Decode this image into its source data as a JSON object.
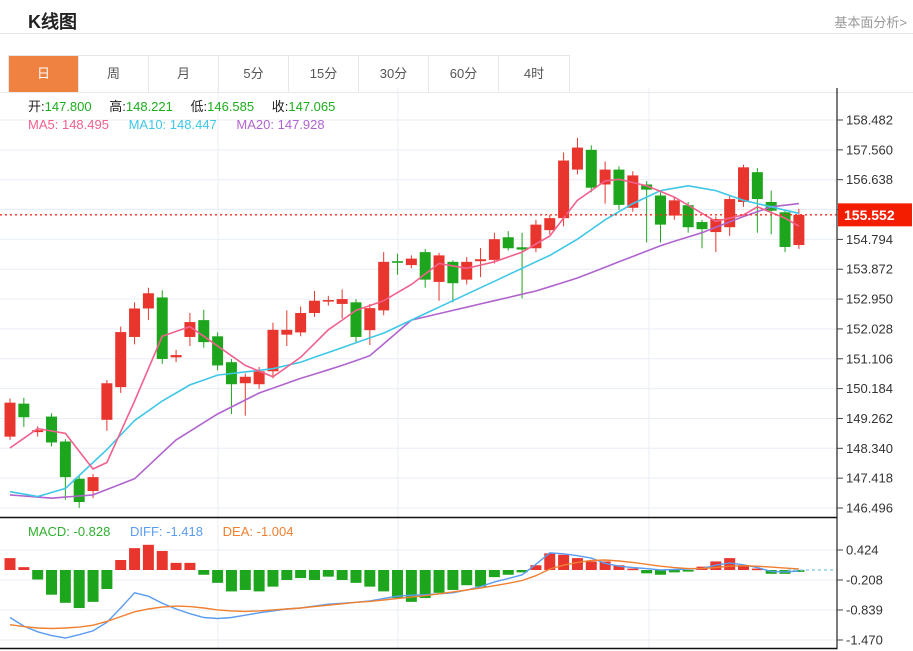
{
  "header": {
    "title": "K线图",
    "link": "基本面分析>"
  },
  "tabs": [
    {
      "label": "日",
      "active": true
    },
    {
      "label": "周",
      "active": false
    },
    {
      "label": "月",
      "active": false
    },
    {
      "label": "5分",
      "active": false
    },
    {
      "label": "15分",
      "active": false
    },
    {
      "label": "30分",
      "active": false
    },
    {
      "label": "60分",
      "active": false
    },
    {
      "label": "4时",
      "active": false
    }
  ],
  "info": {
    "open_label": "开:",
    "open": "147.800",
    "high_label": "高:",
    "high": "148.221",
    "low_label": "低:",
    "low": "146.585",
    "close_label": "收:",
    "close": "147.065",
    "ma5_label": "MA5:",
    "ma5": "148.495",
    "ma10_label": "MA10:",
    "ma10": "148.447",
    "ma20_label": "MA20:",
    "ma20": "147.928"
  },
  "macd_info": {
    "macd_label": "MACD:",
    "macd": "-0.828",
    "diff_label": "DIFF:",
    "diff": "-1.418",
    "dea_label": "DEA:",
    "dea": "-1.004"
  },
  "colors": {
    "up": "#e8362e",
    "down": "#1ea51e",
    "ma5": "#f2618e",
    "ma10": "#3fc7e8",
    "ma20": "#b164cd",
    "diff": "#5b9cf0",
    "dea": "#f08030",
    "grid": "#e9eef6",
    "axis": "#333333",
    "current_line": "#ff2a1a",
    "badge_bg": "#f51d00",
    "badge_text": "#ffffff",
    "green_text": "#1cae1c",
    "tab_accent": "#ef8241",
    "zero_dash": "#8fd0ec"
  },
  "chart_data": {
    "type": "candlestick",
    "title": "K线图",
    "legend": [
      "MA5",
      "MA10",
      "MA20",
      "MACD",
      "DIFF",
      "DEA"
    ],
    "current_price": "155.552",
    "price_ticks": [
      "158.482",
      "157.560",
      "156.638",
      "155.716",
      "154.794",
      "153.872",
      "152.950",
      "152.028",
      "151.106",
      "150.184",
      "149.262",
      "148.340",
      "147.418",
      "146.496"
    ],
    "tick_step": 0.922,
    "vgrid_x": [
      218,
      398,
      649
    ],
    "candles": [
      [
        148.7,
        149.75,
        148.6,
        149.88
      ],
      [
        149.72,
        149.3,
        149.0,
        149.9
      ],
      [
        148.84,
        148.9,
        148.7,
        149.02
      ],
      [
        149.32,
        148.52,
        148.4,
        149.42
      ],
      [
        148.55,
        147.45,
        146.75,
        148.62
      ],
      [
        147.4,
        146.68,
        146.5,
        147.48
      ],
      [
        147.02,
        147.45,
        146.8,
        147.55
      ],
      [
        149.22,
        150.35,
        148.88,
        150.45
      ],
      [
        150.23,
        151.93,
        150.05,
        152.1
      ],
      [
        151.78,
        152.66,
        151.55,
        152.85
      ],
      [
        152.66,
        153.13,
        152.3,
        153.3
      ],
      [
        153.0,
        151.1,
        150.95,
        153.22
      ],
      [
        151.15,
        151.22,
        151.0,
        151.38
      ],
      [
        151.78,
        152.24,
        151.5,
        152.52
      ],
      [
        152.3,
        151.62,
        151.45,
        152.62
      ],
      [
        151.8,
        150.9,
        150.75,
        151.92
      ],
      [
        151.0,
        150.32,
        149.4,
        151.1
      ],
      [
        150.35,
        150.55,
        149.35,
        150.65
      ],
      [
        150.32,
        150.72,
        150.18,
        150.85
      ],
      [
        150.72,
        152.0,
        150.5,
        152.22
      ],
      [
        151.85,
        152.0,
        151.5,
        152.6
      ],
      [
        151.92,
        152.52,
        151.8,
        152.72
      ],
      [
        152.52,
        152.9,
        152.4,
        153.2
      ],
      [
        152.88,
        152.92,
        152.75,
        153.05
      ],
      [
        152.8,
        152.95,
        152.35,
        153.25
      ],
      [
        152.85,
        151.78,
        151.6,
        152.95
      ],
      [
        151.99,
        152.67,
        151.53,
        152.8
      ],
      [
        152.6,
        154.1,
        152.45,
        154.4
      ],
      [
        154.12,
        154.08,
        153.7,
        154.35
      ],
      [
        154.0,
        154.2,
        153.9,
        154.3
      ],
      [
        154.4,
        153.55,
        153.3,
        154.5
      ],
      [
        153.48,
        154.3,
        152.9,
        154.38
      ],
      [
        154.1,
        153.44,
        152.85,
        154.15
      ],
      [
        153.55,
        154.1,
        153.4,
        154.25
      ],
      [
        154.12,
        154.18,
        153.63,
        154.53
      ],
      [
        154.16,
        154.8,
        154.05,
        155.0
      ],
      [
        154.86,
        154.52,
        154.45,
        155.05
      ],
      [
        154.55,
        154.48,
        152.97,
        155.0
      ],
      [
        154.52,
        155.25,
        154.4,
        155.4
      ],
      [
        155.08,
        155.45,
        154.95,
        155.55
      ],
      [
        155.45,
        157.23,
        155.2,
        157.48
      ],
      [
        156.95,
        157.63,
        156.8,
        157.93
      ],
      [
        157.56,
        156.39,
        156.25,
        157.7
      ],
      [
        156.49,
        156.95,
        155.9,
        157.2
      ],
      [
        156.95,
        155.86,
        155.7,
        157.05
      ],
      [
        155.77,
        156.77,
        155.65,
        156.9
      ],
      [
        156.49,
        156.33,
        154.7,
        156.6
      ],
      [
        156.15,
        155.25,
        154.7,
        156.25
      ],
      [
        155.53,
        156.0,
        155.4,
        156.1
      ],
      [
        155.85,
        155.17,
        155.0,
        155.95
      ],
      [
        155.33,
        155.11,
        154.52,
        155.4
      ],
      [
        155.02,
        155.42,
        154.4,
        155.5
      ],
      [
        155.17,
        156.04,
        154.9,
        156.15
      ],
      [
        155.95,
        157.02,
        155.8,
        157.1
      ],
      [
        156.87,
        156.04,
        155.0,
        157.0
      ],
      [
        155.95,
        155.68,
        154.95,
        156.3
      ],
      [
        155.63,
        154.56,
        154.4,
        155.7
      ],
      [
        154.62,
        155.55,
        154.5,
        155.74
      ]
    ],
    "ma5_knots": [
      [
        0,
        148.35
      ],
      [
        2,
        148.95
      ],
      [
        4,
        148.8
      ],
      [
        6,
        147.7
      ],
      [
        7,
        147.9
      ],
      [
        9,
        149.8
      ],
      [
        11,
        151.8
      ],
      [
        13,
        152.1
      ],
      [
        15,
        151.5
      ],
      [
        17,
        150.9
      ],
      [
        19,
        150.55
      ],
      [
        21,
        151.15
      ],
      [
        23,
        152.0
      ],
      [
        25,
        152.6
      ],
      [
        27,
        152.9
      ],
      [
        29,
        153.4
      ],
      [
        31,
        154.05
      ],
      [
        33,
        153.9
      ],
      [
        35,
        154.1
      ],
      [
        37,
        154.4
      ],
      [
        39,
        154.9
      ],
      [
        41,
        156.0
      ],
      [
        43,
        156.6
      ],
      [
        44,
        156.65
      ],
      [
        46,
        156.45
      ],
      [
        48,
        156.1
      ],
      [
        50,
        155.6
      ],
      [
        51,
        155.35
      ],
      [
        53,
        155.55
      ],
      [
        54,
        155.8
      ],
      [
        56,
        155.45
      ],
      [
        57,
        155.2
      ]
    ],
    "ma10_knots": [
      [
        0,
        147.0
      ],
      [
        2,
        146.85
      ],
      [
        4,
        147.1
      ],
      [
        7,
        148.3
      ],
      [
        9,
        149.2
      ],
      [
        11,
        149.8
      ],
      [
        13,
        150.3
      ],
      [
        15,
        150.6
      ],
      [
        17,
        150.7
      ],
      [
        19,
        150.8
      ],
      [
        21,
        151.0
      ],
      [
        23,
        151.3
      ],
      [
        25,
        151.6
      ],
      [
        27,
        151.9
      ],
      [
        29,
        152.3
      ],
      [
        31,
        152.7
      ],
      [
        33,
        153.1
      ],
      [
        35,
        153.5
      ],
      [
        37,
        153.9
      ],
      [
        39,
        154.3
      ],
      [
        41,
        154.8
      ],
      [
        43,
        155.4
      ],
      [
        45,
        155.9
      ],
      [
        47,
        156.3
      ],
      [
        49,
        156.45
      ],
      [
        51,
        156.3
      ],
      [
        53,
        156.0
      ],
      [
        55,
        155.8
      ],
      [
        57,
        155.6
      ]
    ],
    "ma20_knots": [
      [
        0,
        146.9
      ],
      [
        3,
        146.8
      ],
      [
        6,
        146.9
      ],
      [
        9,
        147.4
      ],
      [
        12,
        148.6
      ],
      [
        15,
        149.4
      ],
      [
        18,
        150.05
      ],
      [
        21,
        150.5
      ],
      [
        24,
        150.9
      ],
      [
        26,
        151.2
      ],
      [
        29,
        152.3
      ],
      [
        32,
        152.6
      ],
      [
        35,
        152.9
      ],
      [
        38,
        153.2
      ],
      [
        41,
        153.6
      ],
      [
        44,
        154.1
      ],
      [
        47,
        154.6
      ],
      [
        50,
        155.0
      ],
      [
        53,
        155.5
      ],
      [
        55,
        155.8
      ],
      [
        57,
        155.9
      ]
    ],
    "macd": {
      "ticks": [
        "0.424",
        "-0.208",
        "-0.839",
        "-1.470"
      ],
      "hist": [
        0.25,
        0.06,
        -0.2,
        -0.52,
        -0.69,
        -0.8,
        -0.67,
        -0.4,
        0.21,
        0.46,
        0.53,
        0.4,
        0.15,
        0.15,
        -0.1,
        -0.27,
        -0.45,
        -0.42,
        -0.45,
        -0.35,
        -0.21,
        -0.17,
        -0.21,
        -0.14,
        -0.21,
        -0.27,
        -0.35,
        -0.45,
        -0.59,
        -0.67,
        -0.59,
        -0.48,
        -0.42,
        -0.32,
        -0.35,
        -0.15,
        -0.1,
        -0.05,
        0.1,
        0.35,
        0.32,
        0.25,
        0.18,
        0.18,
        0.1,
        0.03,
        -0.07,
        -0.1,
        -0.05,
        -0.03,
        0.07,
        0.18,
        0.25,
        0.1,
        0.03,
        -0.08,
        -0.08,
        -0.04
      ],
      "diff": [
        -1.0,
        -1.18,
        -1.3,
        -1.38,
        -1.43,
        -1.36,
        -1.28,
        -1.1,
        -0.8,
        -0.48,
        -0.55,
        -0.7,
        -0.82,
        -0.92,
        -1.0,
        -1.02,
        -1.0,
        -0.95,
        -0.9,
        -0.86,
        -0.82,
        -0.8,
        -0.76,
        -0.72,
        -0.7,
        -0.68,
        -0.65,
        -0.6,
        -0.55,
        -0.53,
        -0.52,
        -0.5,
        -0.48,
        -0.42,
        -0.35,
        -0.25,
        -0.18,
        -0.1,
        0.12,
        0.36,
        0.34,
        0.3,
        0.25,
        0.14,
        0.08,
        0.05,
        0.03,
        0.0,
        0.01,
        0.02,
        0.03,
        0.1,
        0.15,
        0.11,
        0.05,
        -0.03,
        -0.04,
        -0.02
      ],
      "dea": [
        -1.15,
        -1.19,
        -1.22,
        -1.23,
        -1.22,
        -1.2,
        -1.16,
        -1.08,
        -0.98,
        -0.88,
        -0.82,
        -0.78,
        -0.76,
        -0.77,
        -0.8,
        -0.84,
        -0.86,
        -0.87,
        -0.86,
        -0.84,
        -0.82,
        -0.8,
        -0.77,
        -0.74,
        -0.71,
        -0.68,
        -0.66,
        -0.63,
        -0.6,
        -0.57,
        -0.54,
        -0.5,
        -0.46,
        -0.42,
        -0.38,
        -0.33,
        -0.28,
        -0.22,
        -0.12,
        0.02,
        0.1,
        0.16,
        0.2,
        0.21,
        0.19,
        0.16,
        0.12,
        0.08,
        0.05,
        0.03,
        0.03,
        0.05,
        0.08,
        0.09,
        0.08,
        0.06,
        0.04,
        0.02
      ]
    }
  }
}
